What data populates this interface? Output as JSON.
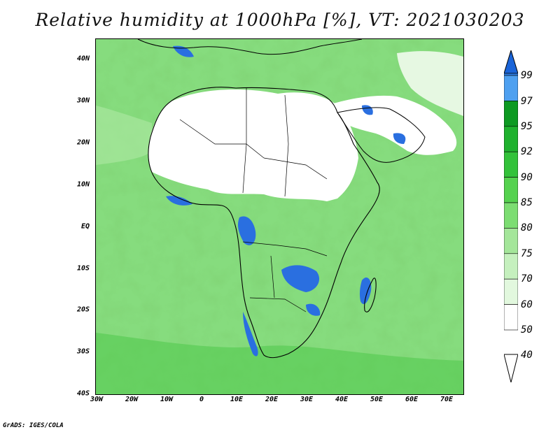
{
  "title": "Relative humidity at 1000hPa [%], VT: 2021030203",
  "credit": "GrADS: IGES/COLA",
  "map": {
    "lon_range": [
      -30,
      75
    ],
    "lat_range": [
      -40,
      45
    ],
    "lat_ticks": [
      "40N",
      "30N",
      "20N",
      "10N",
      "EQ",
      "10S",
      "20S",
      "30S",
      "40S"
    ],
    "lon_ticks": [
      "30W",
      "20W",
      "10W",
      "0",
      "10E",
      "20E",
      "30E",
      "40E",
      "50E",
      "60E",
      "70E"
    ]
  },
  "colorbar": {
    "levels": [
      "99",
      "97",
      "95",
      "92",
      "90",
      "85",
      "80",
      "75",
      "70",
      "60",
      "50",
      "40"
    ],
    "colors": [
      "#1a64d8",
      "#2f7fe8",
      "#4ea0f0",
      "#0d9a22",
      "#1fb22e",
      "#33c23a",
      "#55d24f",
      "#7cdd72",
      "#a4e69a",
      "#c5f0be",
      "#e2f8de",
      "#ffffff"
    ]
  }
}
